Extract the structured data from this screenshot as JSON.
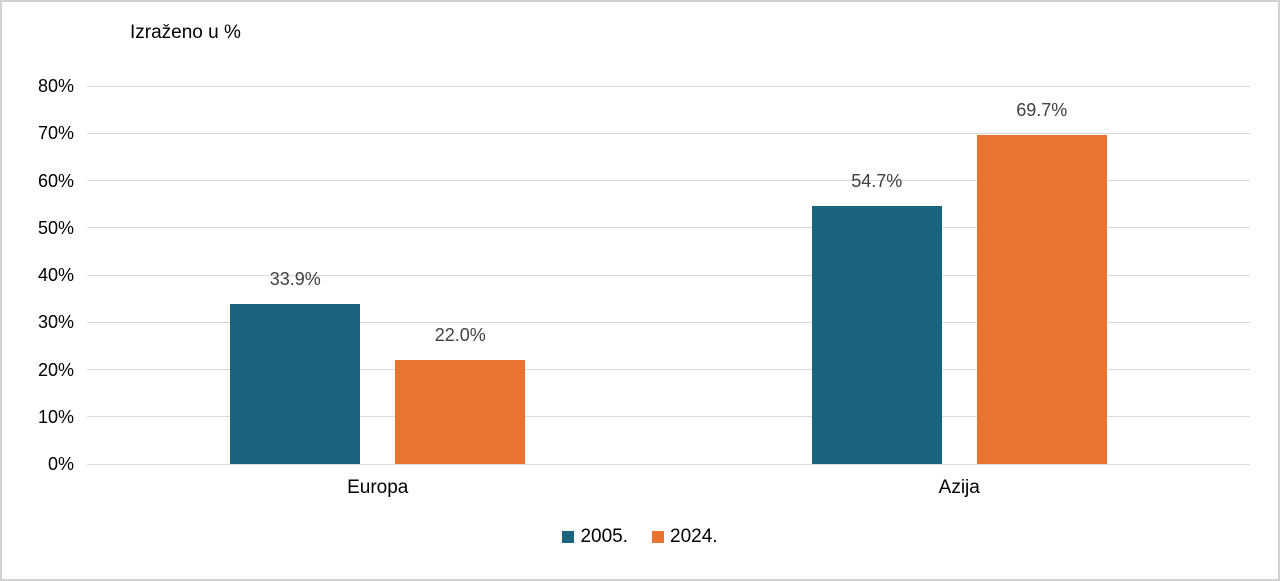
{
  "chart_data": {
    "type": "bar",
    "title": "Izraženo u %",
    "categories": [
      "Europa",
      "Azija"
    ],
    "series": [
      {
        "name": "2005.",
        "color": "#1A647E",
        "values": [
          33.9,
          54.7
        ],
        "labels": [
          "33.9%",
          "54.7%"
        ]
      },
      {
        "name": "2024.",
        "color": "#E8742F",
        "values": [
          22.0,
          69.7
        ],
        "labels": [
          "22.0%",
          "69.7%"
        ]
      }
    ],
    "ylim": [
      0,
      80
    ],
    "ytick_values": [
      0,
      10,
      20,
      30,
      40,
      50,
      60,
      70,
      80
    ],
    "ytick_labels": [
      "0%",
      "10%",
      "20%",
      "30%",
      "40%",
      "50%",
      "60%",
      "70%",
      "80%"
    ],
    "grid": true,
    "gridline_color": "#d9d9d9",
    "data_label_color": "#404040",
    "legend_position": "bottom"
  }
}
